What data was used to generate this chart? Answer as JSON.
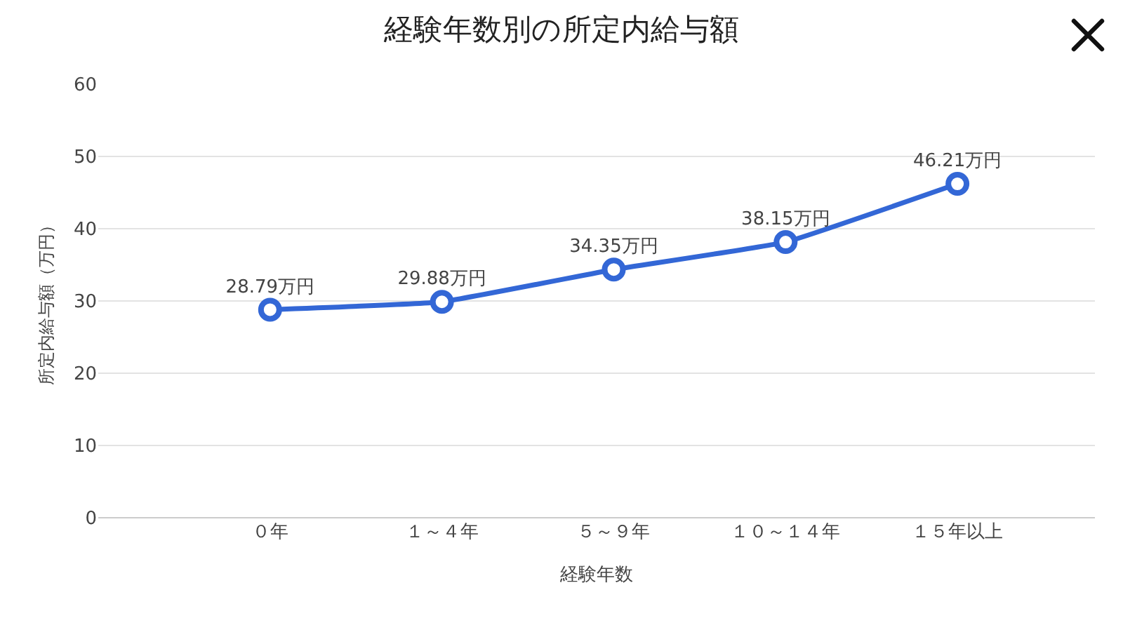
{
  "chart_data": {
    "type": "line",
    "title": "経験年数別の所定内給与額",
    "xlabel": "経験年数",
    "ylabel": "所定内給与額（万円）",
    "categories": [
      "０年",
      "１～４年",
      "５～９年",
      "１０～１４年",
      "１５年以上"
    ],
    "series": [
      {
        "color": "#3367d6",
        "values": [
          28.79,
          29.88,
          34.35,
          38.15,
          46.21
        ],
        "value_labels": [
          "28.79万円",
          "29.88万円",
          "34.35万円",
          "38.15万円",
          "46.21万円"
        ]
      }
    ],
    "ylim": [
      0,
      60
    ],
    "yticks": [
      0,
      10,
      20,
      30,
      40,
      50,
      60
    ],
    "grid": "y",
    "marker": "circle",
    "line_style": "solid"
  }
}
